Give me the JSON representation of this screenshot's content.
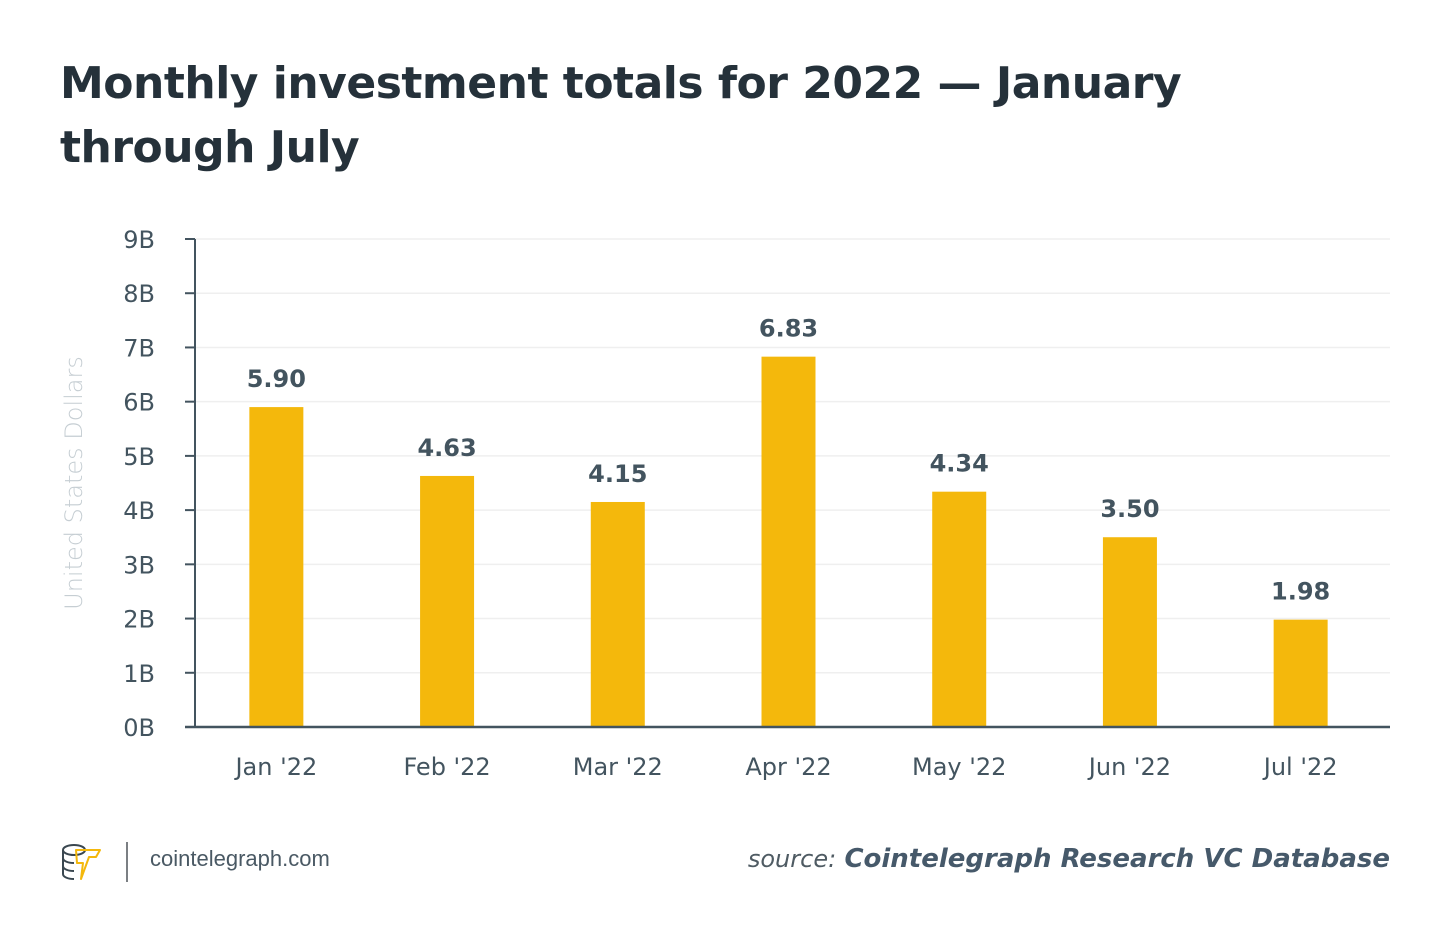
{
  "title": "Monthly investment totals for 2022 — January through July",
  "footer": {
    "logo_icon": "cointelegraph-logo-icon",
    "site": "cointelegraph.com",
    "source_label": "source:",
    "source_value": "Cointelegraph Research VC Database"
  },
  "colors": {
    "bar": "#f4b80c",
    "axis": "#43545f",
    "grid": "#efefef",
    "text": "#43545f",
    "ylabel": "#c6ced3"
  },
  "chart_data": {
    "type": "bar",
    "title": "Monthly investment totals for 2022 — January through July",
    "xlabel": "",
    "ylabel": "United States Dollars",
    "categories": [
      "Jan '22",
      "Feb '22",
      "Mar '22",
      "Apr '22",
      "May '22",
      "Jun '22",
      "Jul '22"
    ],
    "values": [
      5.9,
      4.63,
      4.15,
      6.83,
      4.34,
      3.5,
      1.98
    ],
    "value_labels": [
      "5.90",
      "4.63",
      "4.15",
      "6.83",
      "4.34",
      "3.50",
      "1.98"
    ],
    "ylim": [
      0,
      9
    ],
    "yticks": [
      0,
      1,
      2,
      3,
      4,
      5,
      6,
      7,
      8,
      9
    ],
    "ytick_labels": [
      "0B",
      "1B",
      "2B",
      "3B",
      "4B",
      "5B",
      "6B",
      "7B",
      "8B",
      "9B"
    ],
    "units": "billion USD",
    "grid": true,
    "legend": "none"
  }
}
